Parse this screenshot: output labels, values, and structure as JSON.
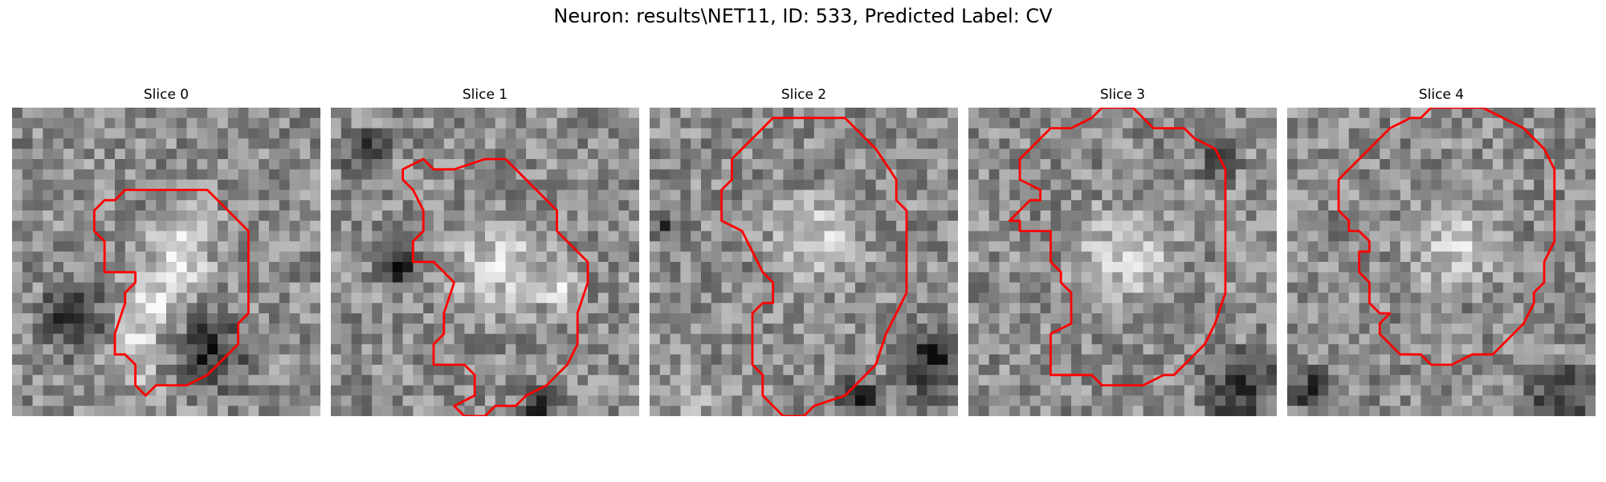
{
  "title": "Neuron: results\\NET11, ID: 533, Predicted Label: CV",
  "outline_color": "#ff0000",
  "grid": 30,
  "panels": [
    {
      "label": "Slice 0",
      "outline": [
        [
          13,
          8
        ],
        [
          19,
          8
        ],
        [
          21,
          10
        ],
        [
          23,
          12
        ],
        [
          23,
          20
        ],
        [
          22,
          21
        ],
        [
          22,
          23
        ],
        [
          20,
          25
        ],
        [
          19,
          26
        ],
        [
          17,
          27
        ],
        [
          14,
          27
        ],
        [
          13,
          28
        ],
        [
          12,
          27
        ],
        [
          12,
          25
        ],
        [
          11,
          24
        ],
        [
          10,
          24
        ],
        [
          10,
          22
        ],
        [
          11,
          19
        ],
        [
          11,
          18
        ],
        [
          12,
          17
        ],
        [
          12,
          16
        ],
        [
          10,
          16
        ],
        [
          9,
          16
        ],
        [
          9,
          15
        ],
        [
          9,
          13
        ],
        [
          8,
          12
        ],
        [
          8,
          10
        ],
        [
          9,
          9
        ],
        [
          10,
          9
        ],
        [
          11,
          8
        ]
      ],
      "bright": [
        [
          16,
          12,
          5
        ],
        [
          15,
          17,
          5
        ],
        [
          12,
          22,
          7
        ]
      ],
      "dark": [
        [
          18,
          23,
          6
        ],
        [
          6,
          20,
          5
        ]
      ]
    },
    {
      "label": "Slice 1",
      "outline": [
        [
          9,
          5
        ],
        [
          10,
          6
        ],
        [
          12,
          6
        ],
        [
          15,
          5
        ],
        [
          17,
          5
        ],
        [
          19,
          7
        ],
        [
          22,
          10
        ],
        [
          22,
          12
        ],
        [
          24,
          14
        ],
        [
          25,
          15
        ],
        [
          25,
          17
        ],
        [
          24,
          20
        ],
        [
          24,
          23
        ],
        [
          23,
          25
        ],
        [
          22,
          26
        ],
        [
          21,
          27
        ],
        [
          19,
          28
        ],
        [
          18,
          29
        ],
        [
          16,
          29
        ],
        [
          15,
          30
        ],
        [
          13,
          30
        ],
        [
          12,
          29
        ],
        [
          14,
          28
        ],
        [
          14,
          26
        ],
        [
          13,
          25
        ],
        [
          10,
          25
        ],
        [
          10,
          23
        ],
        [
          11,
          22
        ],
        [
          11,
          20
        ],
        [
          12,
          17
        ],
        [
          11,
          16
        ],
        [
          10,
          15
        ],
        [
          8,
          15
        ],
        [
          8,
          13
        ],
        [
          9,
          12
        ],
        [
          9,
          10
        ],
        [
          8,
          8
        ],
        [
          7,
          7
        ],
        [
          7,
          6
        ]
      ],
      "bright": [
        [
          16,
          15,
          7
        ],
        [
          22,
          17,
          3
        ]
      ],
      "dark": [
        [
          6,
          15,
          3
        ],
        [
          20,
          29,
          3
        ],
        [
          3,
          4,
          3
        ]
      ]
    },
    {
      "label": "Slice 2",
      "outline": [
        [
          13,
          1
        ],
        [
          14,
          1
        ],
        [
          16,
          1
        ],
        [
          19,
          1
        ],
        [
          20,
          2
        ],
        [
          22,
          4
        ],
        [
          24,
          7
        ],
        [
          24,
          9
        ],
        [
          25,
          10
        ],
        [
          25,
          14
        ],
        [
          25,
          18
        ],
        [
          24,
          20
        ],
        [
          23,
          22
        ],
        [
          22,
          25
        ],
        [
          21,
          26
        ],
        [
          20,
          27
        ],
        [
          19,
          28
        ],
        [
          16,
          29
        ],
        [
          15,
          30
        ],
        [
          13,
          30
        ],
        [
          12,
          29
        ],
        [
          11,
          28
        ],
        [
          11,
          26
        ],
        [
          10,
          25
        ],
        [
          10,
          22
        ],
        [
          10,
          20
        ],
        [
          11,
          19
        ],
        [
          12,
          19
        ],
        [
          12,
          17
        ],
        [
          11,
          16
        ],
        [
          10,
          14
        ],
        [
          9,
          12
        ],
        [
          7,
          11
        ],
        [
          7,
          9
        ],
        [
          7,
          8
        ],
        [
          8,
          7
        ],
        [
          8,
          5
        ],
        [
          9,
          4
        ],
        [
          10,
          3
        ],
        [
          11,
          2
        ],
        [
          12,
          1
        ]
      ],
      "bright": [
        [
          16,
          12,
          6
        ],
        [
          3,
          27,
          3
        ]
      ],
      "dark": [
        [
          27,
          24,
          5
        ],
        [
          20,
          28,
          3
        ],
        [
          1,
          11,
          2
        ]
      ]
    },
    {
      "label": "Slice 3",
      "outline": [
        [
          10,
          2
        ],
        [
          12,
          1
        ],
        [
          13,
          0
        ],
        [
          16,
          0
        ],
        [
          18,
          2
        ],
        [
          21,
          2
        ],
        [
          22,
          3
        ],
        [
          24,
          4
        ],
        [
          25,
          6
        ],
        [
          25,
          9
        ],
        [
          25,
          11
        ],
        [
          25,
          15
        ],
        [
          25,
          18
        ],
        [
          24,
          21
        ],
        [
          23,
          23
        ],
        [
          22,
          24
        ],
        [
          21,
          25
        ],
        [
          20,
          26
        ],
        [
          19,
          26
        ],
        [
          17,
          27
        ],
        [
          13,
          27
        ],
        [
          12,
          26
        ],
        [
          9,
          26
        ],
        [
          8,
          26
        ],
        [
          8,
          22
        ],
        [
          10,
          21
        ],
        [
          10,
          18
        ],
        [
          9,
          17
        ],
        [
          9,
          16
        ],
        [
          8,
          15
        ],
        [
          8,
          12
        ],
        [
          5,
          12
        ],
        [
          5,
          11
        ],
        [
          4,
          11
        ],
        [
          5,
          10
        ],
        [
          6,
          9
        ],
        [
          7,
          9
        ],
        [
          7,
          8
        ],
        [
          5,
          7
        ],
        [
          5,
          6
        ],
        [
          5,
          5
        ],
        [
          6,
          4
        ],
        [
          7,
          3
        ],
        [
          8,
          2
        ],
        [
          9,
          2
        ]
      ],
      "bright": [
        [
          15,
          14,
          7
        ]
      ],
      "dark": [
        [
          26,
          27,
          5
        ],
        [
          24,
          4,
          3
        ]
      ]
    },
    {
      "label": "Slice 4",
      "outline": [
        [
          13,
          1
        ],
        [
          14,
          0
        ],
        [
          16,
          0
        ],
        [
          19,
          0
        ],
        [
          21,
          1
        ],
        [
          23,
          2
        ],
        [
          25,
          4
        ],
        [
          26,
          6
        ],
        [
          26,
          7
        ],
        [
          26,
          8
        ],
        [
          26,
          10
        ],
        [
          26,
          13
        ],
        [
          25,
          15
        ],
        [
          25,
          17
        ],
        [
          24,
          18
        ],
        [
          24,
          19
        ],
        [
          23,
          21
        ],
        [
          22,
          22
        ],
        [
          21,
          23
        ],
        [
          20,
          24
        ],
        [
          18,
          24
        ],
        [
          16,
          25
        ],
        [
          14,
          25
        ],
        [
          13,
          24
        ],
        [
          11,
          24
        ],
        [
          10,
          23
        ],
        [
          9,
          22
        ],
        [
          9,
          21
        ],
        [
          10,
          20
        ],
        [
          9,
          20
        ],
        [
          8,
          19
        ],
        [
          8,
          17
        ],
        [
          7,
          16
        ],
        [
          7,
          14
        ],
        [
          8,
          14
        ],
        [
          8,
          13
        ],
        [
          7,
          12
        ],
        [
          6,
          12
        ],
        [
          6,
          11
        ],
        [
          5,
          10
        ],
        [
          5,
          8
        ],
        [
          5,
          7
        ],
        [
          6,
          6
        ],
        [
          7,
          5
        ],
        [
          8,
          4
        ],
        [
          9,
          3
        ],
        [
          10,
          2
        ],
        [
          12,
          1
        ]
      ],
      "bright": [
        [
          16,
          13,
          6
        ]
      ],
      "dark": [
        [
          26,
          28,
          5
        ],
        [
          2,
          27,
          3
        ]
      ]
    }
  ]
}
